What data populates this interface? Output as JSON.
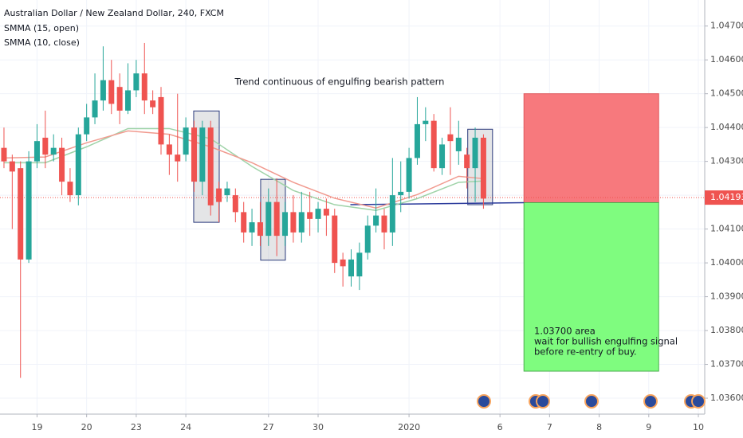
{
  "chart_data": {
    "type": "candlestick",
    "title": "Australian Dollar / New Zealand Dollar, 240, FXCM",
    "up_color": "#26a69a",
    "down_color": "#ef5350",
    "grid": true,
    "x": [
      0,
      1,
      2,
      3,
      4,
      5,
      6,
      7,
      8,
      9,
      10,
      11,
      12,
      13,
      14,
      15,
      16,
      17,
      18,
      19,
      20,
      21,
      22,
      23,
      24,
      25,
      26,
      27,
      28,
      29,
      30,
      31,
      32,
      33,
      34,
      35,
      36,
      37,
      38,
      39,
      40,
      41,
      42,
      43,
      44,
      45,
      46,
      47,
      48,
      49,
      50,
      51,
      52,
      53,
      54,
      55,
      56,
      57,
      58
    ],
    "open": [
      1.0434,
      1.043,
      1.0428,
      1.0401,
      1.043,
      1.0437,
      1.0432,
      1.0434,
      1.0424,
      1.042,
      1.0438,
      1.0443,
      1.0448,
      1.0454,
      1.0452,
      1.0445,
      1.0451,
      1.0456,
      1.0448,
      1.0449,
      1.0435,
      1.0432,
      1.0432,
      1.044,
      1.0424,
      1.044,
      1.0422,
      1.042,
      1.042,
      1.0415,
      1.0409,
      1.0412,
      1.0408,
      1.0418,
      1.0408,
      1.0415,
      1.0409,
      1.0415,
      1.0413,
      1.0416,
      1.0414,
      1.0401,
      1.0396,
      1.0396,
      1.0403,
      1.0411,
      1.0414,
      1.0409,
      1.042,
      1.0421,
      1.0431,
      1.0441,
      1.0442,
      1.0428,
      1.0438,
      1.0433,
      1.0432,
      1.0428,
      1.0437
    ],
    "high": [
      1.044,
      1.0432,
      1.043,
      1.0433,
      1.0441,
      1.0445,
      1.0438,
      1.0437,
      1.0428,
      1.044,
      1.0447,
      1.0456,
      1.0464,
      1.046,
      1.0456,
      1.0459,
      1.046,
      1.0465,
      1.0451,
      1.0452,
      1.0438,
      1.045,
      1.0443,
      1.0442,
      1.0442,
      1.0442,
      1.0424,
      1.0424,
      1.0422,
      1.0418,
      1.0416,
      1.0418,
      1.0422,
      1.0425,
      1.0418,
      1.042,
      1.0421,
      1.0421,
      1.0418,
      1.0419,
      1.0416,
      1.0403,
      1.0404,
      1.0406,
      1.0414,
      1.0422,
      1.0416,
      1.0431,
      1.043,
      1.0434,
      1.0449,
      1.0446,
      1.0444,
      1.0437,
      1.0446,
      1.0442,
      1.0434,
      1.044,
      1.0438
    ],
    "low": [
      1.0428,
      1.041,
      1.0366,
      1.04,
      1.0428,
      1.0428,
      1.043,
      1.042,
      1.0418,
      1.0417,
      1.0436,
      1.0441,
      1.0445,
      1.0444,
      1.0441,
      1.0444,
      1.0449,
      1.0444,
      1.0444,
      1.0432,
      1.0426,
      1.0424,
      1.043,
      1.0421,
      1.042,
      1.0414,
      1.0412,
      1.0418,
      1.0412,
      1.0406,
      1.0405,
      1.0405,
      1.0405,
      1.0402,
      1.0405,
      1.0406,
      1.0406,
      1.0408,
      1.0409,
      1.0408,
      1.0397,
      1.0393,
      1.0393,
      1.0392,
      1.0401,
      1.0409,
      1.0404,
      1.0405,
      1.0415,
      1.0419,
      1.0429,
      1.0436,
      1.0427,
      1.0426,
      1.0426,
      1.0429,
      1.0422,
      1.0418,
      1.0416
    ],
    "close": [
      1.043,
      1.0427,
      1.0401,
      1.043,
      1.0436,
      1.0432,
      1.0434,
      1.0424,
      1.042,
      1.0438,
      1.0443,
      1.0448,
      1.0454,
      1.0447,
      1.0445,
      1.0451,
      1.0456,
      1.0448,
      1.0446,
      1.0435,
      1.0432,
      1.043,
      1.044,
      1.0424,
      1.044,
      1.0417,
      1.0418,
      1.0422,
      1.0415,
      1.0409,
      1.0412,
      1.0408,
      1.0418,
      1.0408,
      1.0415,
      1.0409,
      1.0415,
      1.0413,
      1.0416,
      1.0414,
      1.04,
      1.0399,
      1.0401,
      1.0403,
      1.0411,
      1.0414,
      1.0409,
      1.042,
      1.0421,
      1.0431,
      1.0441,
      1.0442,
      1.0428,
      1.0435,
      1.0436,
      1.0437,
      1.0428,
      1.0437,
      1.0419
    ],
    "overlays": [
      {
        "name": "SMMA (15, open)",
        "color": "#9fd3a8",
        "x": [
          0,
          5,
          10,
          15,
          20,
          25,
          30,
          35,
          40,
          45,
          50,
          55,
          58
        ],
        "values": [
          1.04296,
          1.04296,
          1.04343,
          1.04397,
          1.04397,
          1.04367,
          1.04285,
          1.04214,
          1.04172,
          1.04155,
          1.0419,
          1.04238,
          1.04242
        ]
      },
      {
        "name": "SMMA (10, close)",
        "color": "#f19a8f",
        "x": [
          0,
          5,
          10,
          15,
          20,
          25,
          30,
          35,
          40,
          45,
          50,
          55,
          58
        ],
        "values": [
          1.0431,
          1.04313,
          1.04355,
          1.0439,
          1.0438,
          1.04343,
          1.04296,
          1.04238,
          1.04191,
          1.04162,
          1.04202,
          1.04256,
          1.04249
        ]
      }
    ],
    "last_price": 1.04193,
    "trend_line": {
      "x": [
        41.9,
        62.9
      ],
      "values": [
        1.04172,
        1.04178
      ],
      "color": "#2a3a9b"
    },
    "highlight_boxes": [
      {
        "x": [
          22.95,
          26.04
        ],
        "range": [
          1.04449,
          1.0412
        ]
      },
      {
        "x": [
          31.05,
          34.04
        ],
        "range": [
          1.04247,
          1.04008
        ]
      },
      {
        "x": [
          56.1,
          59.1
        ],
        "range": [
          1.04395,
          1.04172
        ]
      }
    ],
    "position": {
      "x": [
        62.9,
        79.2
      ],
      "stop": 1.045,
      "entry": 1.04178,
      "target": 1.0368
    },
    "annotations": [
      "Trend continuous of engulfing bearish pattern",
      "1.03700 area",
      "wait for bullish engulfing signal",
      "before re-entry of buy."
    ],
    "xlim": [
      -0.48,
      84.77
    ],
    "xticks": [
      {
        "value": 4,
        "label": "19"
      },
      {
        "value": 10,
        "label": "20"
      },
      {
        "value": 16,
        "label": "23"
      },
      {
        "value": 22,
        "label": "24"
      },
      {
        "value": 32,
        "label": "27"
      },
      {
        "value": 38,
        "label": "30"
      },
      {
        "value": 49,
        "label": "2020"
      },
      {
        "value": 60,
        "label": "6"
      },
      {
        "value": 66,
        "label": "7"
      },
      {
        "value": 72,
        "label": "8"
      },
      {
        "value": 78,
        "label": "9"
      },
      {
        "value": 84,
        "label": "10"
      }
    ],
    "ylim": [
      1.03553,
      1.04777
    ],
    "yticks": [
      {
        "value": 1.036,
        "label": "1.03600"
      },
      {
        "value": 1.037,
        "label": "1.03700"
      },
      {
        "value": 1.038,
        "label": "1.03800"
      },
      {
        "value": 1.039,
        "label": "1.03900"
      },
      {
        "value": 1.04,
        "label": "1.04000"
      },
      {
        "value": 1.041,
        "label": "1.04100"
      },
      {
        "value": 1.042,
        "label": "1.04200"
      },
      {
        "value": 1.043,
        "label": "1.04300"
      },
      {
        "value": 1.044,
        "label": "1.04400"
      },
      {
        "value": 1.045,
        "label": "1.04500"
      },
      {
        "value": 1.046,
        "label": "1.04600"
      },
      {
        "value": 1.047,
        "label": "1.04700"
      }
    ]
  }
}
